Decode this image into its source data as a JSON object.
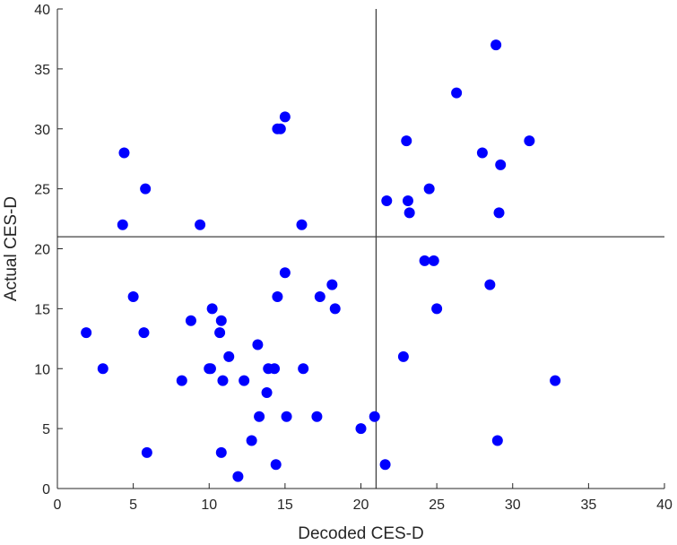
{
  "chart_data": {
    "type": "scatter",
    "xlabel": "Decoded CES-D",
    "ylabel": "Actual CES-D",
    "xlim": [
      0,
      40
    ],
    "ylim": [
      0,
      40
    ],
    "xticks": [
      0,
      5,
      10,
      15,
      20,
      25,
      30,
      35,
      40
    ],
    "yticks": [
      0,
      5,
      10,
      15,
      20,
      25,
      30,
      35,
      40
    ],
    "grid": false,
    "reference_lines": {
      "vertical_x": 21,
      "horizontal_y": 21
    },
    "marker_color": "#0000FF",
    "line_color": "#404040",
    "points": [
      [
        1.9,
        13
      ],
      [
        3.0,
        10
      ],
      [
        4.3,
        22
      ],
      [
        4.4,
        28
      ],
      [
        5.0,
        16
      ],
      [
        5.7,
        13
      ],
      [
        5.8,
        25
      ],
      [
        5.9,
        3
      ],
      [
        8.2,
        9
      ],
      [
        8.8,
        14
      ],
      [
        9.4,
        22
      ],
      [
        10.0,
        10
      ],
      [
        10.1,
        10
      ],
      [
        10.2,
        15
      ],
      [
        10.7,
        13
      ],
      [
        10.8,
        14
      ],
      [
        10.8,
        3
      ],
      [
        10.9,
        9
      ],
      [
        11.3,
        11
      ],
      [
        11.9,
        1
      ],
      [
        12.3,
        9
      ],
      [
        12.8,
        4
      ],
      [
        13.2,
        12
      ],
      [
        13.3,
        6
      ],
      [
        13.8,
        8
      ],
      [
        13.9,
        10
      ],
      [
        14.3,
        10
      ],
      [
        14.4,
        2
      ],
      [
        14.5,
        16
      ],
      [
        14.5,
        30
      ],
      [
        14.7,
        30
      ],
      [
        15.0,
        31
      ],
      [
        15.0,
        18
      ],
      [
        15.1,
        6
      ],
      [
        16.1,
        22
      ],
      [
        16.2,
        10
      ],
      [
        17.1,
        6
      ],
      [
        17.3,
        16
      ],
      [
        18.1,
        17
      ],
      [
        18.3,
        15
      ],
      [
        20.0,
        5
      ],
      [
        20.9,
        6
      ],
      [
        21.6,
        2
      ],
      [
        21.7,
        24
      ],
      [
        22.8,
        11
      ],
      [
        23.0,
        29
      ],
      [
        23.1,
        24
      ],
      [
        23.2,
        23
      ],
      [
        24.2,
        19
      ],
      [
        24.5,
        25
      ],
      [
        24.8,
        19
      ],
      [
        25.0,
        15
      ],
      [
        26.3,
        33
      ],
      [
        28.0,
        28
      ],
      [
        28.5,
        17
      ],
      [
        28.9,
        37
      ],
      [
        29.0,
        4
      ],
      [
        29.1,
        23
      ],
      [
        29.2,
        27
      ],
      [
        31.1,
        29
      ],
      [
        32.8,
        9
      ]
    ]
  }
}
